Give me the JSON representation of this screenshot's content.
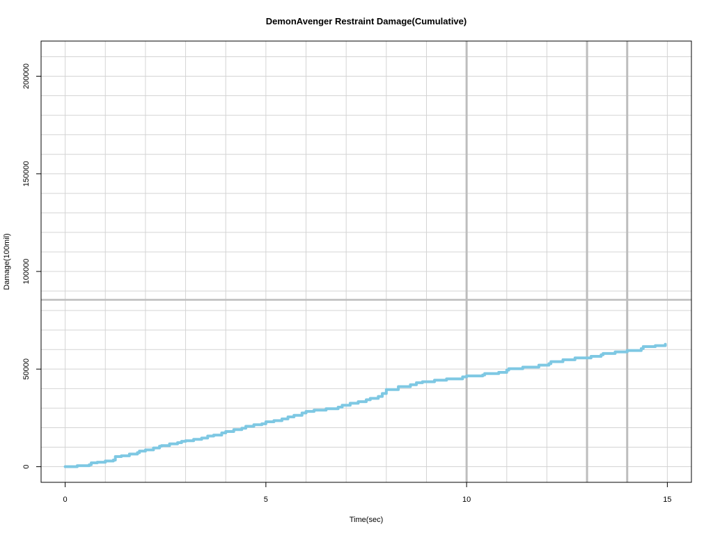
{
  "chart_data": {
    "type": "line",
    "title": "DemonAvenger Restraint Damage(Cumulative)",
    "xlabel": "Time(sec)",
    "ylabel": "Damage(100mil)",
    "xlim": [
      -0.6,
      15.6
    ],
    "ylim": [
      -8000,
      218000
    ],
    "x_ticks": [
      0,
      5,
      10,
      15
    ],
    "x_tick_labels": [
      "0",
      "5",
      "10",
      "15"
    ],
    "y_ticks": [
      0,
      50000,
      100000,
      150000,
      200000
    ],
    "y_tick_labels": [
      "0",
      "50000",
      "100000",
      "150000",
      "200000"
    ],
    "grid": true,
    "minor_grid_x_step": 1,
    "minor_grid_y_step": 10000,
    "reference_lines": {
      "vertical": [
        10,
        13,
        14
      ],
      "horizontal": [
        85500
      ]
    },
    "series": [
      {
        "color": "#7ec8e3",
        "x": [
          0,
          0.3,
          0.6,
          0.65,
          0.8,
          1.0,
          1.2,
          1.25,
          1.4,
          1.6,
          1.8,
          1.85,
          2.0,
          2.2,
          2.35,
          2.4,
          2.6,
          2.8,
          2.9,
          3.0,
          3.2,
          3.4,
          3.55,
          3.7,
          3.9,
          4.0,
          4.2,
          4.4,
          4.5,
          4.7,
          4.9,
          5.0,
          5.2,
          5.4,
          5.55,
          5.7,
          5.9,
          6.0,
          6.2,
          6.5,
          6.8,
          6.9,
          7.1,
          7.3,
          7.5,
          7.6,
          7.8,
          7.9,
          8.0,
          8.3,
          8.6,
          8.75,
          8.9,
          9.2,
          9.5,
          9.9,
          10.0,
          10.4,
          10.45,
          10.8,
          11.0,
          11.05,
          11.4,
          11.8,
          12.05,
          12.1,
          12.4,
          12.7,
          13.1,
          13.35,
          13.4,
          13.7,
          14.0,
          14.35,
          14.4,
          14.7,
          14.95
        ],
        "y": [
          0,
          500,
          1000,
          2000,
          2300,
          2900,
          3400,
          5200,
          5600,
          6500,
          7200,
          8000,
          8600,
          9600,
          10500,
          10800,
          11700,
          12300,
          13000,
          13300,
          14000,
          14700,
          15700,
          16200,
          17300,
          18000,
          19000,
          19700,
          20700,
          21500,
          22000,
          23000,
          23600,
          24500,
          25500,
          26300,
          27500,
          28300,
          29000,
          29700,
          30500,
          31500,
          32500,
          33300,
          34300,
          35000,
          36000,
          37500,
          39500,
          41000,
          42000,
          43000,
          43500,
          44300,
          45000,
          46000,
          46500,
          47000,
          47700,
          48300,
          49500,
          50200,
          51000,
          52000,
          52800,
          53800,
          54800,
          55700,
          56500,
          57300,
          58000,
          58800,
          59500,
          60500,
          61500,
          62000,
          62700
        ]
      }
    ]
  }
}
